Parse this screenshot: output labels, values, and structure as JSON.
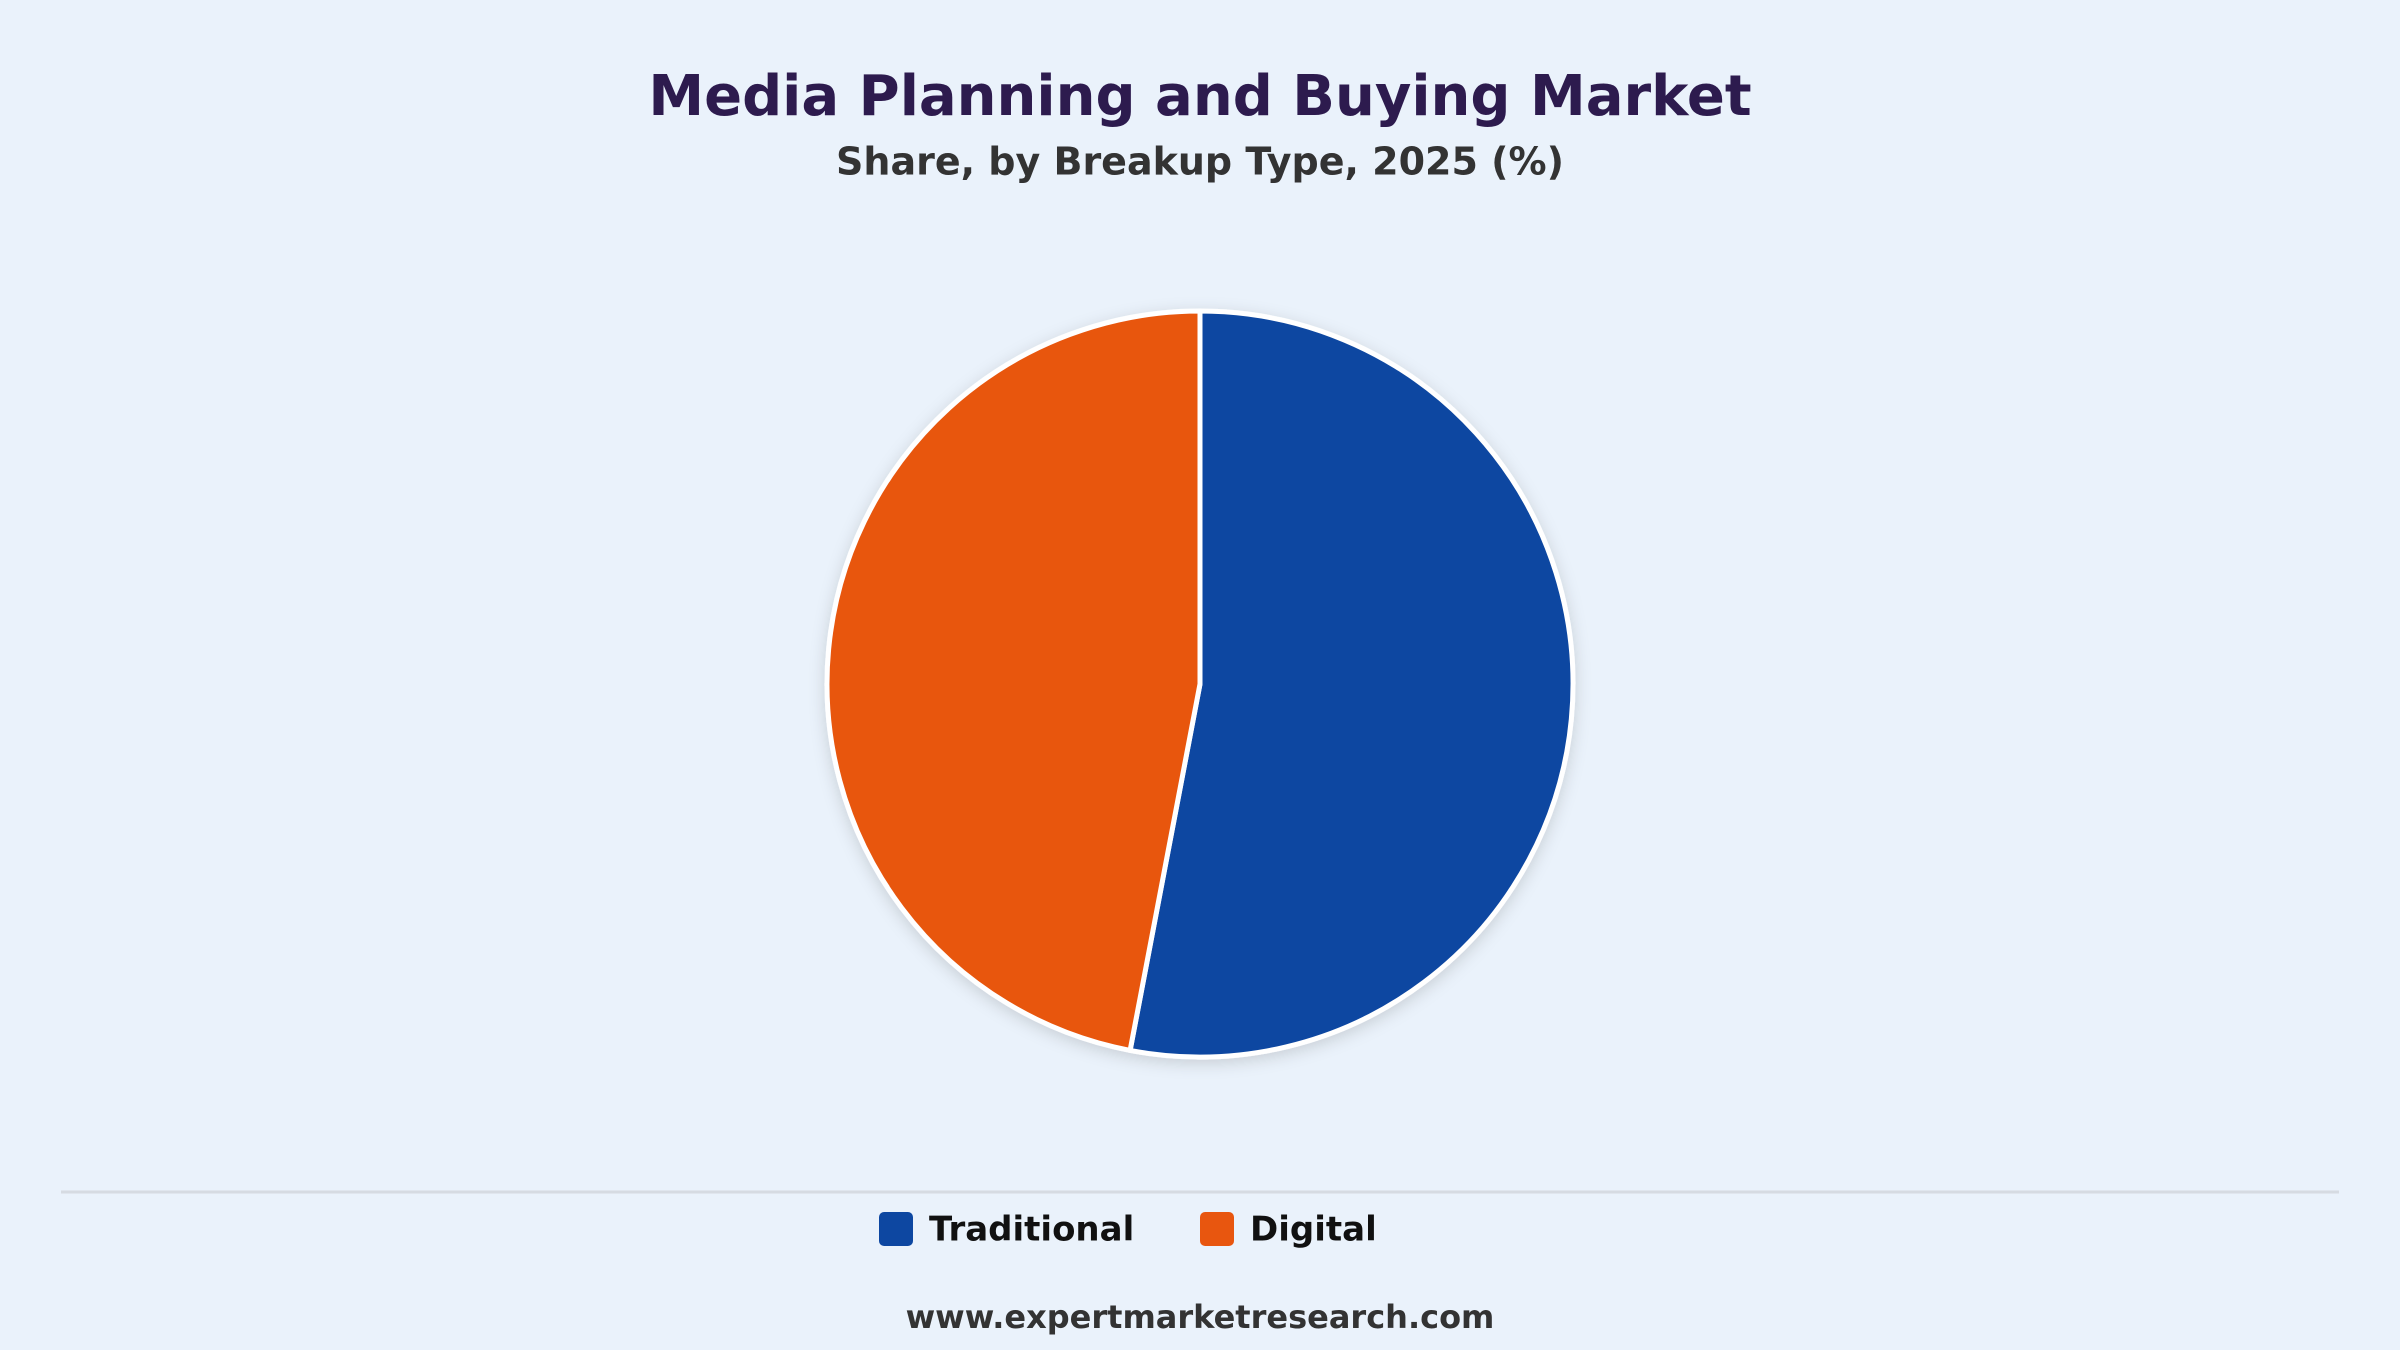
{
  "chart_data": {
    "type": "pie",
    "title": "Media Planning and Buying Market",
    "subtitle": "Share, by Breakup Type, 2025 (%)",
    "categories": [
      "Traditional",
      "Digital"
    ],
    "values": [
      53,
      47
    ],
    "colors": [
      "#0d47a1",
      "#e8560f"
    ],
    "legend": "bottom",
    "start_angle": 0,
    "direction": "clockwise",
    "source": "www.expertmarketresearch.com"
  }
}
